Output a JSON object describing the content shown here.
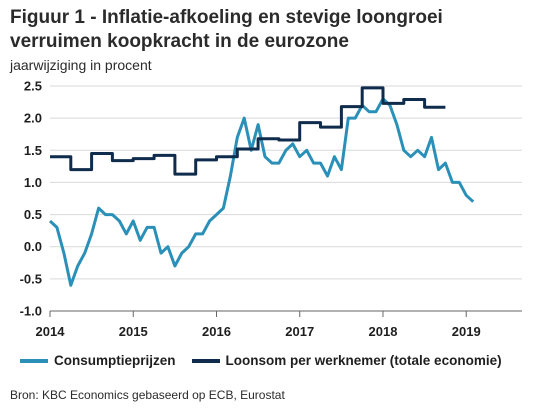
{
  "title": "Figuur 1 - Inflatie-afkoeling en stevige loongroei verruimen koopkracht in de eurozone",
  "subtitle": "jaarwijziging in procent",
  "source": "Bron: KBC Economics gebaseerd op ECB, Eurostat",
  "colors": {
    "consumer": "#2a90b8",
    "wages": "#0f2c4c",
    "grid": "#d9d9d9",
    "axis": "#666666"
  },
  "chart_data": {
    "type": "line",
    "title": "Figuur 1 - Inflatie-afkoeling en stevige loongroei verruimen koopkracht in de eurozone",
    "ylabel": "jaarwijziging in procent",
    "xlabel": "",
    "ylim": [
      -1.0,
      2.5
    ],
    "yticks": [
      "2.5",
      "2.0",
      "1.5",
      "1.0",
      "0.5",
      "0.0",
      "-0.5",
      "-1.0"
    ],
    "ytick_values": [
      2.5,
      2.0,
      1.5,
      1.0,
      0.5,
      0.0,
      -0.5,
      -1.0
    ],
    "xlim": [
      2014.0,
      2019.67
    ],
    "xticks": [
      "2014",
      "2015",
      "2016",
      "2017",
      "2018",
      "2019"
    ],
    "xtick_values": [
      2014,
      2015,
      2016,
      2017,
      2018,
      2019
    ],
    "grid": true,
    "legend_position": "bottom",
    "series": [
      {
        "name": "Consumptieprijzen",
        "style": "monthly",
        "start": 2014.0,
        "values": [
          0.4,
          0.3,
          -0.1,
          -0.6,
          -0.3,
          -0.1,
          0.2,
          0.6,
          0.5,
          0.5,
          0.4,
          0.2,
          0.4,
          0.1,
          0.3,
          0.3,
          -0.1,
          0.0,
          -0.3,
          -0.1,
          0.0,
          0.2,
          0.2,
          0.4,
          0.5,
          0.6,
          1.1,
          1.7,
          2.0,
          1.5,
          1.9,
          1.4,
          1.3,
          1.3,
          1.5,
          1.6,
          1.4,
          1.5,
          1.3,
          1.3,
          1.1,
          1.4,
          1.2,
          2.0,
          2.0,
          2.2,
          2.1,
          2.1,
          2.3,
          2.2,
          1.9,
          1.5,
          1.4,
          1.5,
          1.4,
          1.7,
          1.2,
          1.3,
          1.0,
          1.0,
          0.8,
          0.7
        ]
      },
      {
        "name": "Loonsom per werknemer (totale economie)",
        "style": "quarterly",
        "start": 2014.0,
        "values": [
          1.4,
          1.2,
          1.45,
          1.34,
          1.37,
          1.42,
          1.13,
          1.35,
          1.4,
          1.52,
          1.68,
          1.66,
          1.93,
          1.86,
          2.18,
          2.47,
          2.23,
          2.29,
          2.17
        ]
      }
    ]
  }
}
